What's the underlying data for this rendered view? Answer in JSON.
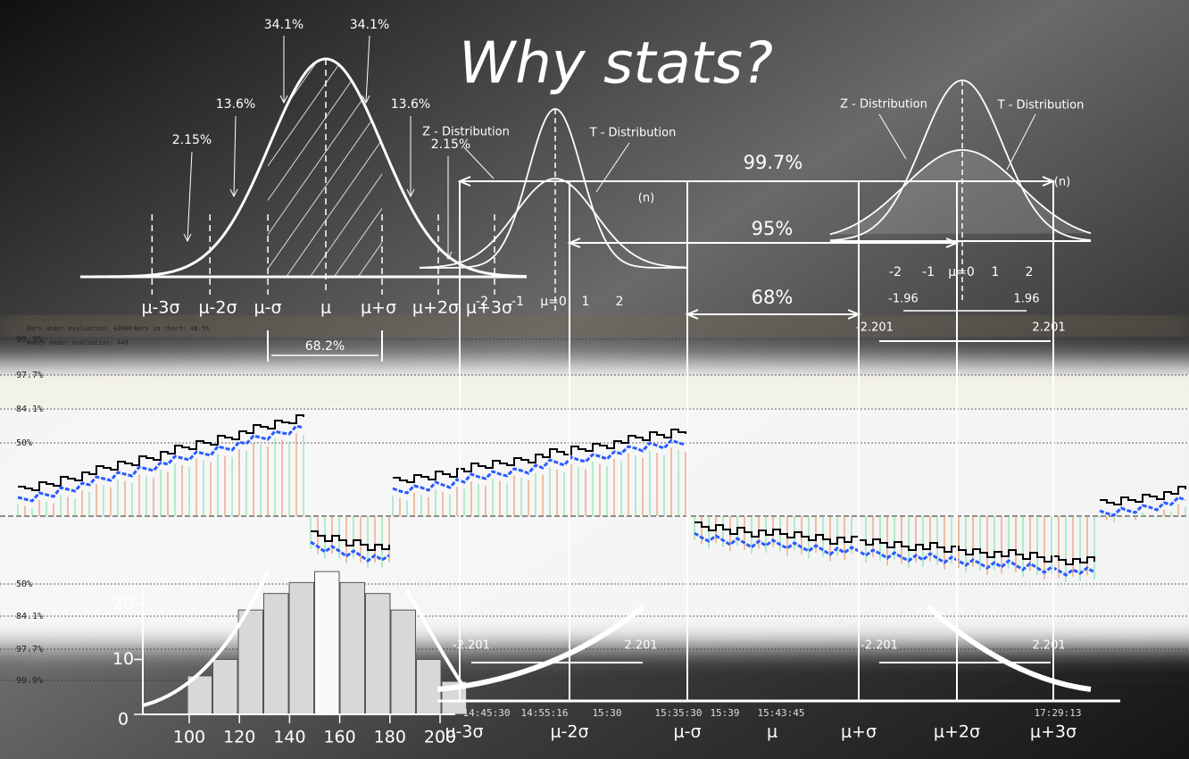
{
  "title": "Why stats?",
  "normal_curve": {
    "percents": [
      "34.1%",
      "34.1%",
      "13.6%",
      "13.6%",
      "2.15%",
      "2.15%"
    ],
    "sigma_labels": [
      "μ-3σ",
      "μ-2σ",
      "μ-σ",
      "μ",
      "μ+σ",
      "μ+2σ",
      "μ+3σ"
    ],
    "range_label": "68.2%"
  },
  "small_distribution": {
    "z_label": "Z - Distribution",
    "t_label": "T - Distribution",
    "n_label": "(n)",
    "ticks": [
      "-2",
      "-1",
      "μ=0",
      "1",
      "2"
    ]
  },
  "large_distribution": {
    "z_label": "Z - Distribution",
    "t_label": "T - Distribution",
    "n_label": "(n)",
    "ticks": [
      "-2",
      "-1",
      "μ=0",
      "1",
      "2"
    ],
    "z_critical": [
      "-1.96",
      "1.96"
    ],
    "t_critical": [
      "-2.201",
      "2.201"
    ]
  },
  "intervals": [
    "99.7%",
    "95%",
    "68%"
  ],
  "lower_critical": [
    "-2.201",
    "2.201",
    "-2.201",
    "2.201"
  ],
  "trading_chart": {
    "info": [
      "Bars under evaluation: 42000",
      "Bars in chart: 48.5%",
      "Waves under evaluation: 449"
    ],
    "levels": [
      "99.9%",
      "97.7%",
      "84.1%",
      "50%",
      "50%",
      "84.1%",
      "97.7%",
      "99.9%"
    ],
    "times": [
      "14:45:30",
      "14:55:16",
      "15:30",
      "15:35:30",
      "15:39",
      "15:43:45",
      "17:29:13"
    ]
  },
  "histogram": {
    "y_ticks": [
      0,
      10,
      20
    ],
    "x_labels": [
      "100",
      "120",
      "140",
      "160",
      "180",
      "200"
    ],
    "values": [
      7,
      10,
      19,
      22,
      24,
      26,
      24,
      22,
      19,
      10,
      6
    ]
  },
  "bottom_axis": [
    "μ-3σ",
    "μ-2σ",
    "μ-σ",
    "μ",
    "μ+σ",
    "μ+2σ",
    "μ+3σ"
  ]
}
